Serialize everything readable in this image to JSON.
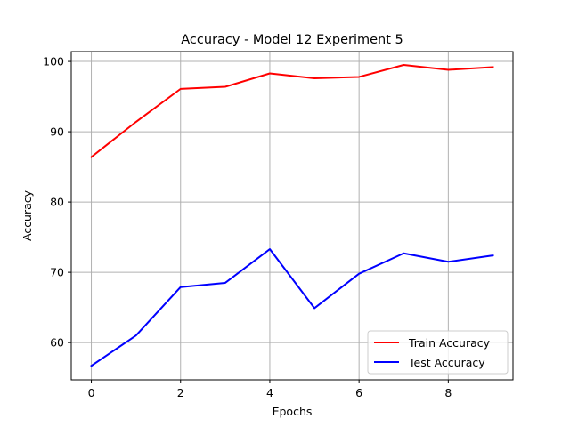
{
  "chart_data": {
    "type": "line",
    "title": "Accuracy - Model 12 Experiment 5",
    "xlabel": "Epochs",
    "ylabel": "Accuracy",
    "x": [
      0,
      1,
      2,
      3,
      4,
      5,
      6,
      7,
      8,
      9
    ],
    "xlim": [
      -0.45,
      9.45
    ],
    "ylim": [
      54.7,
      101.4
    ],
    "xticks": [
      0,
      2,
      4,
      6,
      8
    ],
    "yticks": [
      60,
      70,
      80,
      90,
      100
    ],
    "grid": true,
    "legend_position": "lower-right",
    "series": [
      {
        "name": "Train Accuracy",
        "color": "#ff0000",
        "values": [
          86.4,
          91.4,
          96.1,
          96.4,
          98.3,
          97.6,
          97.8,
          99.5,
          98.8,
          99.2
        ]
      },
      {
        "name": "Test Accuracy",
        "color": "#0000ff",
        "values": [
          56.7,
          61.0,
          67.9,
          68.5,
          73.3,
          64.9,
          69.8,
          72.7,
          71.5,
          72.4
        ]
      }
    ]
  }
}
